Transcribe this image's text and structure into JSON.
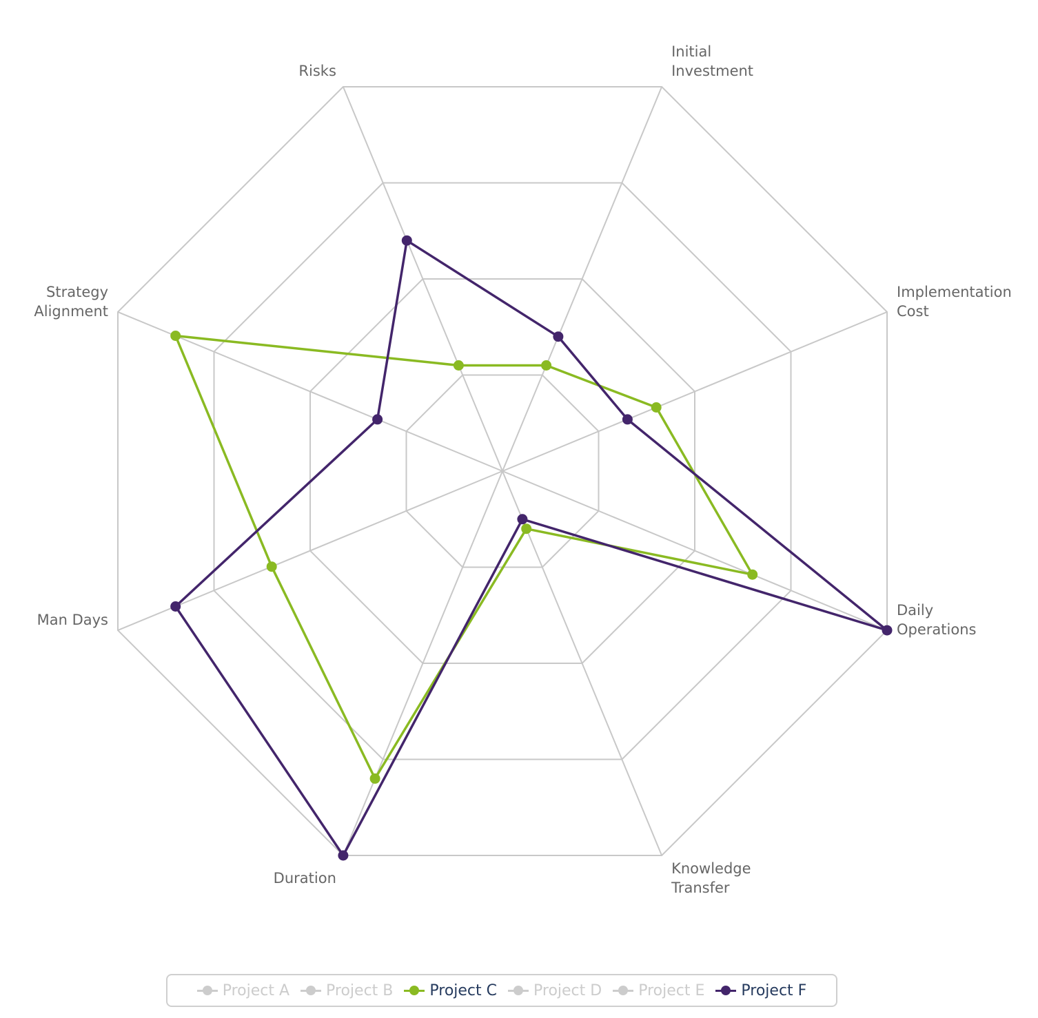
{
  "chart_data": {
    "type": "radar",
    "axes": [
      "Initial Investment",
      "Implementation Cost",
      "Daily Operations",
      "Knowledge Transfer",
      "Duration",
      "Man Days",
      "Strategy Alignment",
      "Risks"
    ],
    "axis_label_lines": [
      [
        "Initial",
        "Investment"
      ],
      [
        "Implementation",
        "Cost"
      ],
      [
        "Daily",
        "Operations"
      ],
      [
        "Knowledge",
        "Transfer"
      ],
      [
        "Duration"
      ],
      [
        "Man Days"
      ],
      [
        "Strategy",
        "Alignment"
      ],
      [
        "Risks"
      ]
    ],
    "range": [
      0,
      4
    ],
    "rings": 4,
    "grid": true,
    "legend_position": "bottom",
    "series": [
      {
        "name": "Project A",
        "visible": false,
        "color": "#cccccc",
        "values": []
      },
      {
        "name": "Project B",
        "visible": false,
        "color": "#cccccc",
        "values": []
      },
      {
        "name": "Project C",
        "visible": true,
        "color": "#8aba22",
        "values": [
          1.1,
          1.6,
          2.6,
          0.6,
          3.2,
          2.4,
          3.4,
          1.1
        ]
      },
      {
        "name": "Project F",
        "visible": true,
        "color": "#43256b",
        "values": [
          1.4,
          1.3,
          4.0,
          0.5,
          4.0,
          3.4,
          1.3,
          2.4
        ]
      },
      {
        "name": "Project D",
        "visible": false,
        "color": "#cccccc",
        "values": []
      },
      {
        "name": "Project E",
        "visible": false,
        "color": "#cccccc",
        "values": []
      }
    ],
    "legend_order": [
      "Project A",
      "Project B",
      "Project C",
      "Project D",
      "Project E",
      "Project F"
    ]
  },
  "colors": {
    "grid": "#c8c8c8",
    "label_text": "#666666",
    "legend_active_text": "#263b5e",
    "legend_inactive": "#cccccc"
  }
}
